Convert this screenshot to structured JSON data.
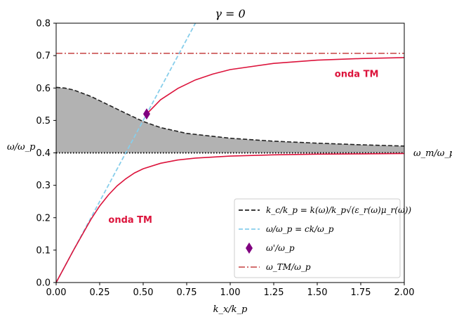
{
  "chart_data": {
    "type": "line",
    "title": "γ = 0",
    "xlabel": "k_x/k_p",
    "ylabel": "ω/ω_p",
    "xlim": [
      0,
      2
    ],
    "ylim": [
      0,
      0.8
    ],
    "xticks": [
      "0.00",
      "0.25",
      "0.50",
      "0.75",
      "1.00",
      "1.25",
      "1.50",
      "1.75",
      "2.00"
    ],
    "yticks": [
      "0.0",
      "0.1",
      "0.2",
      "0.3",
      "0.4",
      "0.5",
      "0.6",
      "0.7",
      "0.8"
    ],
    "grid": false,
    "legend_position": "lower-right",
    "omega_m": 0.4,
    "omega_m_label": "ω_m/ω_p",
    "omega_TM": 0.7071,
    "series": [
      {
        "name": "k_c/k_p = k(ω)/k_p√(ε_r(ω)μ_r(ω))",
        "style": "dashed",
        "color": "#222222",
        "x": [
          0,
          0.05,
          0.1,
          0.2,
          0.3,
          0.4,
          0.5,
          0.6,
          0.75,
          1.0,
          1.25,
          1.5,
          1.75,
          2.0
        ],
        "y": [
          0.602,
          0.6,
          0.594,
          0.574,
          0.548,
          0.522,
          0.497,
          0.478,
          0.46,
          0.445,
          0.436,
          0.43,
          0.425,
          0.421
        ]
      },
      {
        "name": "ω/ω_p = ck/ω_p",
        "style": "dashed",
        "color": "#87ceeb",
        "x": [
          0,
          0.8
        ],
        "y": [
          0,
          0.8
        ]
      },
      {
        "name": "ω'/ω_p",
        "style": "marker",
        "color": "#800080",
        "x": [
          0.52
        ],
        "y": [
          0.52
        ]
      },
      {
        "name": "ω_TM/ω_p",
        "style": "dashdot",
        "color": "#cd5c5c",
        "x": [
          0,
          2
        ],
        "y": [
          0.7071,
          0.7071
        ]
      }
    ],
    "tm_lower": {
      "color": "#dc143c",
      "x": [
        0,
        0.1,
        0.2,
        0.25,
        0.3,
        0.35,
        0.4,
        0.45,
        0.5,
        0.6,
        0.7,
        0.8,
        1.0,
        1.25,
        1.5,
        1.75,
        2.0
      ],
      "y": [
        0,
        0.1,
        0.195,
        0.236,
        0.27,
        0.298,
        0.32,
        0.338,
        0.351,
        0.368,
        0.378,
        0.384,
        0.39,
        0.394,
        0.396,
        0.397,
        0.398
      ]
    },
    "tm_upper": {
      "color": "#dc143c",
      "x": [
        0.52,
        0.6,
        0.7,
        0.8,
        0.9,
        1.0,
        1.25,
        1.5,
        1.75,
        2.0
      ],
      "y": [
        0.52,
        0.564,
        0.599,
        0.625,
        0.643,
        0.657,
        0.676,
        0.686,
        0.691,
        0.694
      ]
    },
    "annotations": [
      {
        "text": "onda TM",
        "x": 1.6,
        "y": 0.645
      },
      {
        "text": "onda TM",
        "x": 0.3,
        "y": 0.195
      }
    ]
  }
}
